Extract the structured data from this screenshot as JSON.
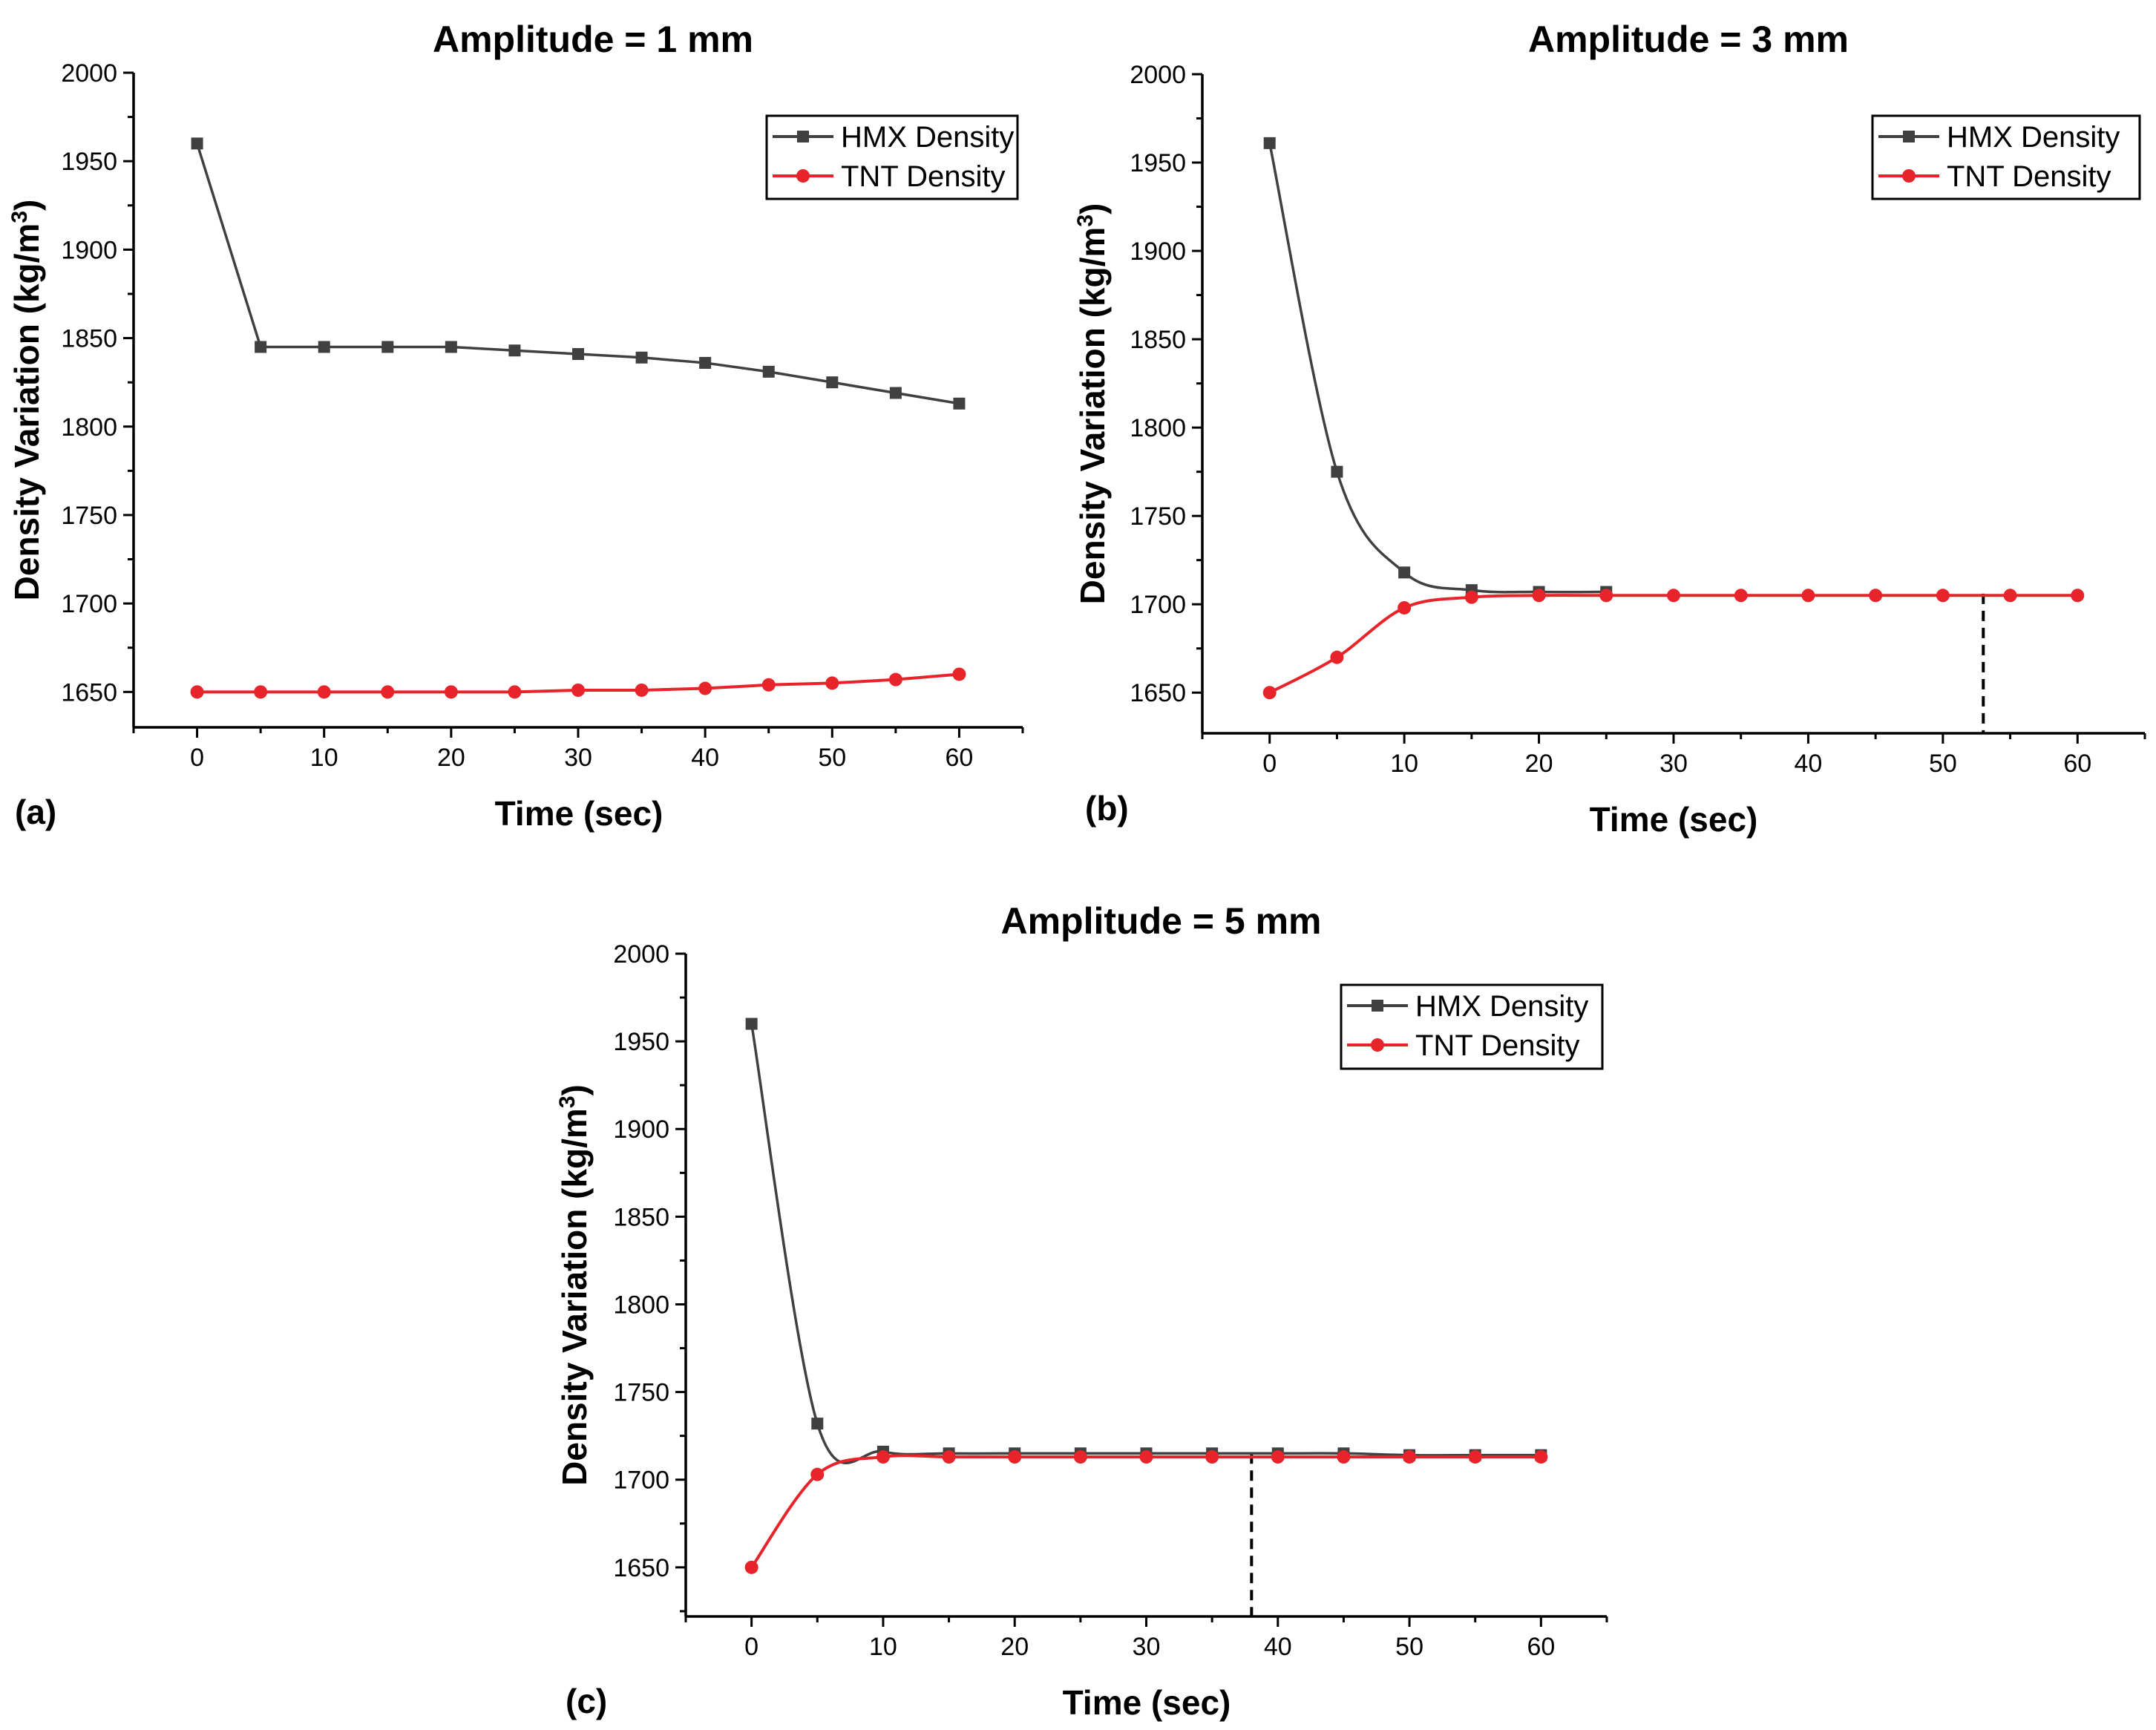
{
  "chart_data": [
    {
      "type": "line",
      "panel_label": "(a)",
      "title": "Amplitude = 1 mm",
      "xlabel": "Time (sec)",
      "ylabel": "Density Variation (kg/m3)",
      "ylabel_main": "Density Variation (kg/m",
      "ylabel_sup": "3",
      "ylabel_end": ")",
      "xlim": [
        -5,
        65
      ],
      "ylim": [
        1630,
        2000
      ],
      "xticks": [
        0,
        10,
        20,
        30,
        40,
        50,
        60
      ],
      "yticks": [
        1650,
        1700,
        1750,
        1800,
        1850,
        1900,
        1950,
        2000
      ],
      "legend_position": "top-right",
      "smooth": false,
      "series": [
        {
          "name": "HMX Density",
          "color": "#404040",
          "marker": "square",
          "x": [
            0,
            5,
            10,
            15,
            20,
            25,
            30,
            35,
            40,
            45,
            50,
            55,
            60
          ],
          "y": [
            1960,
            1845,
            1845,
            1845,
            1845,
            1843,
            1841,
            1839,
            1836,
            1831,
            1825,
            1819,
            1813
          ]
        },
        {
          "name": "TNT Density",
          "color": "#e8242b",
          "marker": "circle",
          "x": [
            0,
            5,
            10,
            15,
            20,
            25,
            30,
            35,
            40,
            45,
            50,
            55,
            60
          ],
          "y": [
            1650,
            1650,
            1650,
            1650,
            1650,
            1650,
            1651,
            1651,
            1652,
            1654,
            1655,
            1657,
            1660
          ]
        }
      ]
    },
    {
      "type": "line",
      "panel_label": "(b)",
      "title": "Amplitude = 3 mm",
      "xlabel": "Time (sec)",
      "ylabel": "Density Variation (kg/m3)",
      "ylabel_main": "Density Variation (kg/m",
      "ylabel_sup": "3",
      "ylabel_end": ")",
      "xlim": [
        -5,
        65
      ],
      "ylim": [
        1627,
        2000
      ],
      "xticks": [
        0,
        10,
        20,
        30,
        40,
        50,
        60
      ],
      "yticks": [
        1650,
        1700,
        1750,
        1800,
        1850,
        1900,
        1950,
        2000
      ],
      "legend_position": "top-right",
      "smooth": true,
      "vline_x": 53,
      "vline_y_top": 1706,
      "series": [
        {
          "name": "HMX Density",
          "color": "#404040",
          "marker": "square",
          "x": [
            0,
            5,
            10,
            15,
            20,
            25
          ],
          "y": [
            1961,
            1775,
            1718,
            1708,
            1707,
            1707
          ]
        },
        {
          "name": "TNT Density",
          "color": "#e8242b",
          "marker": "circle",
          "x": [
            0,
            5,
            10,
            15,
            20,
            25,
            30,
            35,
            40,
            45,
            50,
            55,
            60
          ],
          "y": [
            1650,
            1670,
            1698,
            1704,
            1705,
            1705,
            1705,
            1705,
            1705,
            1705,
            1705,
            1705,
            1705
          ]
        }
      ]
    },
    {
      "type": "line",
      "panel_label": "(c)",
      "title": "Amplitude = 5 mm",
      "xlabel": "Time (sec)",
      "ylabel": "Density Variation (kg/m3)",
      "ylabel_main": "Density Variation (kg/m",
      "ylabel_sup": "3",
      "ylabel_end": ")",
      "xlim": [
        -5,
        65
      ],
      "ylim": [
        1622,
        2000
      ],
      "xticks": [
        0,
        10,
        20,
        30,
        40,
        50,
        60
      ],
      "yticks": [
        1650,
        1700,
        1750,
        1800,
        1850,
        1900,
        1950,
        2000
      ],
      "legend_position": "top-right",
      "smooth": true,
      "vline_x": 38,
      "vline_y_top": 1715,
      "series": [
        {
          "name": "HMX Density",
          "color": "#404040",
          "marker": "square",
          "x": [
            0,
            5,
            10,
            15,
            20,
            25,
            30,
            35,
            40,
            45,
            50,
            55,
            60
          ],
          "y": [
            1960,
            1732,
            1716,
            1715,
            1715,
            1715,
            1715,
            1715,
            1715,
            1715,
            1714,
            1714,
            1714
          ]
        },
        {
          "name": "TNT Density",
          "color": "#e8242b",
          "marker": "circle",
          "x": [
            0,
            5,
            10,
            15,
            20,
            25,
            30,
            35,
            40,
            45,
            50,
            55,
            60
          ],
          "y": [
            1650,
            1703,
            1713,
            1713,
            1713,
            1713,
            1713,
            1713,
            1713,
            1713,
            1713,
            1713,
            1713
          ]
        }
      ]
    }
  ]
}
